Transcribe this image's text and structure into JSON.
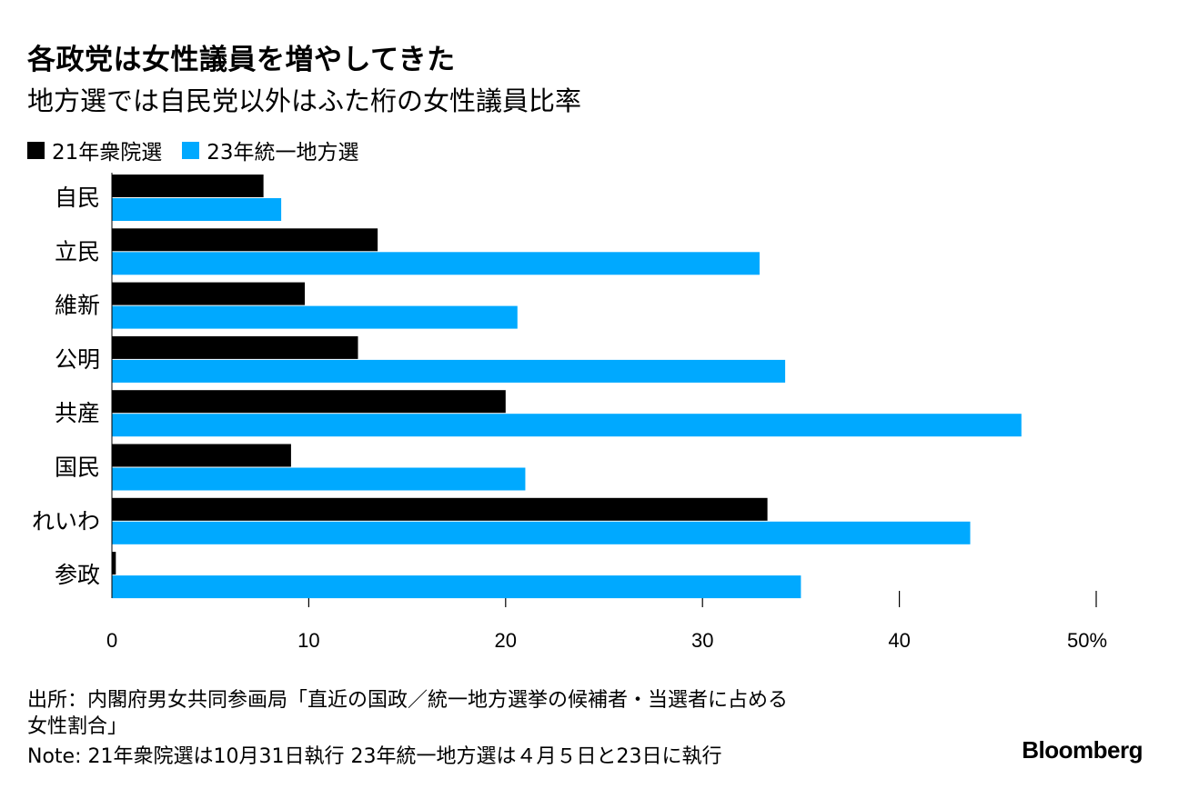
{
  "header": {
    "title": "各政党は女性議員を増やしてきた",
    "subtitle": "地方選では自民党以外はふた桁の女性議員比率"
  },
  "colors": {
    "series1": "#000000",
    "series2": "#00a9ff"
  },
  "chart_data": {
    "type": "bar",
    "orientation": "horizontal",
    "categories": [
      "自民",
      "立民",
      "維新",
      "公明",
      "共産",
      "国民",
      "れいわ",
      "参政"
    ],
    "series": [
      {
        "name": "21年衆院選",
        "values": [
          7.7,
          13.5,
          9.8,
          12.5,
          20.0,
          9.1,
          33.3,
          0.2
        ]
      },
      {
        "name": "23年統一地方選",
        "values": [
          8.6,
          32.9,
          20.6,
          34.2,
          46.2,
          21.0,
          43.6,
          35.0
        ]
      }
    ],
    "xticks": [
      "0",
      "10",
      "20",
      "30",
      "40",
      "50%"
    ],
    "xlim": [
      0,
      50
    ]
  },
  "footer": {
    "source_line1": "出所：内閣府男女共同参画局「直近の国政／統一地方選挙の候補者・当選者に占める",
    "source_line2": "女性割合」",
    "note": "Note: 21年衆院選は10月31日執行 23年統一地方選は４月５日と23日に執行",
    "brand": "Bloomberg"
  }
}
